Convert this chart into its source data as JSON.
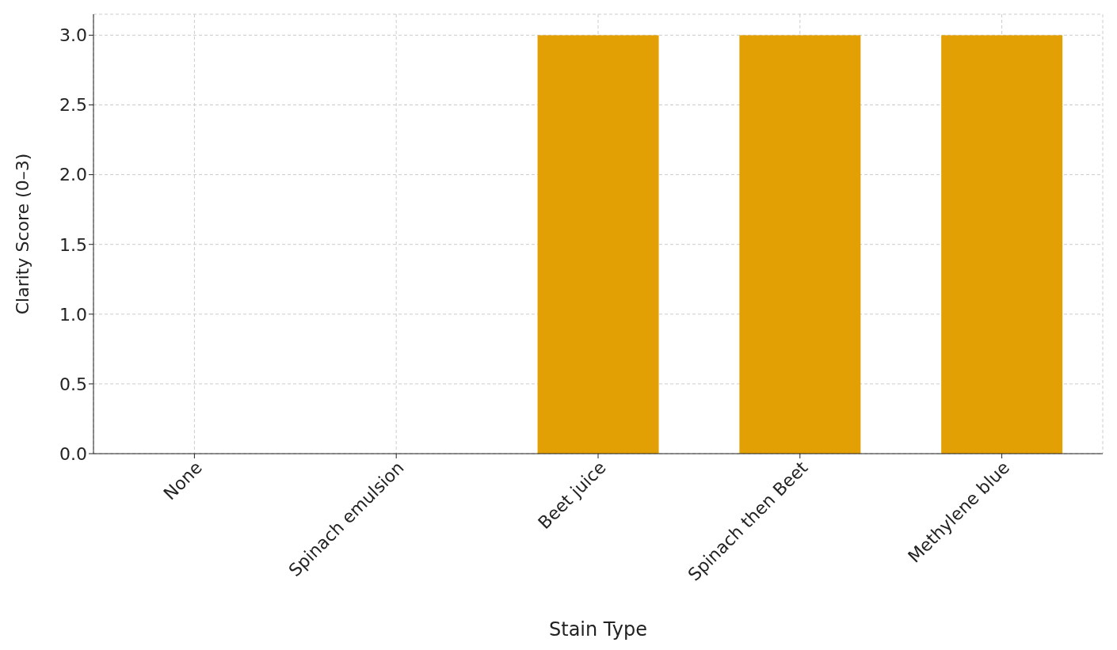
{
  "chart_data": {
    "type": "bar",
    "xlabel": "Stain Type",
    "ylabel": "Clarity Score (0–3)",
    "categories": [
      "None",
      "Spinach emulsion",
      "Beet juice",
      "Spinach then Beet",
      "Methylene blue"
    ],
    "values": [
      0,
      0,
      3,
      3,
      3
    ],
    "color": "#e3a005",
    "ylim": [
      0,
      3.15
    ],
    "yticks": [
      {
        "value": 0,
        "label": "0.0"
      },
      {
        "value": 0.5,
        "label": "0.5"
      },
      {
        "value": 1,
        "label": "1.0"
      },
      {
        "value": 1.5,
        "label": "1.5"
      },
      {
        "value": 2,
        "label": "2.0"
      },
      {
        "value": 2.5,
        "label": "2.5"
      },
      {
        "value": 3,
        "label": "3.0"
      }
    ],
    "grid": true
  }
}
